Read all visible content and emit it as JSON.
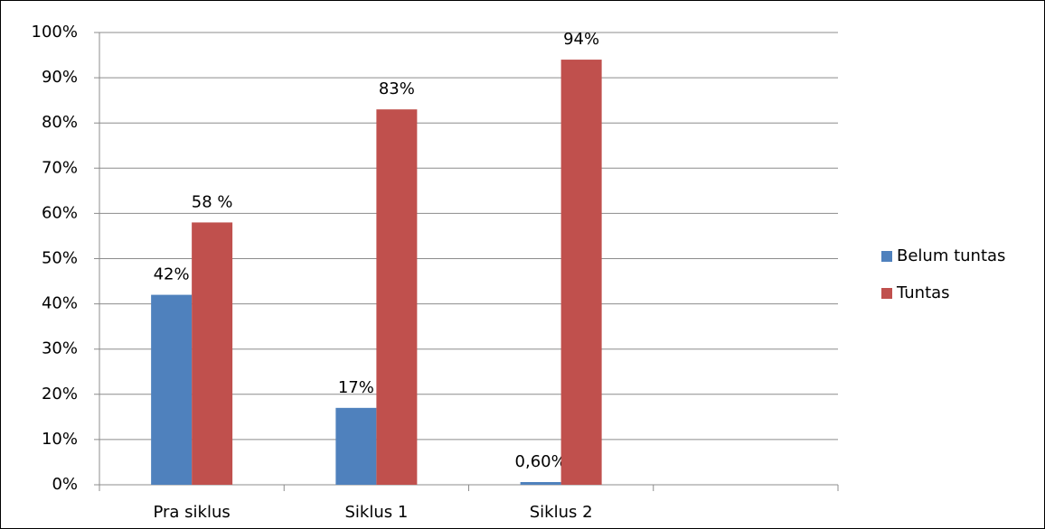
{
  "chart_data": {
    "type": "bar",
    "categories": [
      "Pra siklus",
      "Siklus 1",
      "Siklus 2",
      null
    ],
    "series": [
      {
        "name": "Belum tuntas",
        "color": "#4f81bd",
        "values": [
          42,
          17,
          0.6,
          null
        ],
        "value_labels": [
          "42%",
          "17%",
          "0,60%",
          null
        ]
      },
      {
        "name": "Tuntas",
        "color": "#c0504d",
        "values": [
          58,
          83,
          94,
          null
        ],
        "value_labels": [
          "58 %",
          "83%",
          "94%",
          null
        ]
      }
    ],
    "ylim": [
      0,
      100
    ],
    "yticks": [
      {
        "value": 0,
        "label": "0%"
      },
      {
        "value": 10,
        "label": "10%"
      },
      {
        "value": 20,
        "label": "20%"
      },
      {
        "value": 30,
        "label": "30%"
      },
      {
        "value": 40,
        "label": "40%"
      },
      {
        "value": 50,
        "label": "50%"
      },
      {
        "value": 60,
        "label": "60%"
      },
      {
        "value": 70,
        "label": "70%"
      },
      {
        "value": 80,
        "label": "80%"
      },
      {
        "value": 90,
        "label": "90%"
      },
      {
        "value": 100,
        "label": "100%"
      }
    ],
    "grid": true,
    "legend": "right"
  }
}
